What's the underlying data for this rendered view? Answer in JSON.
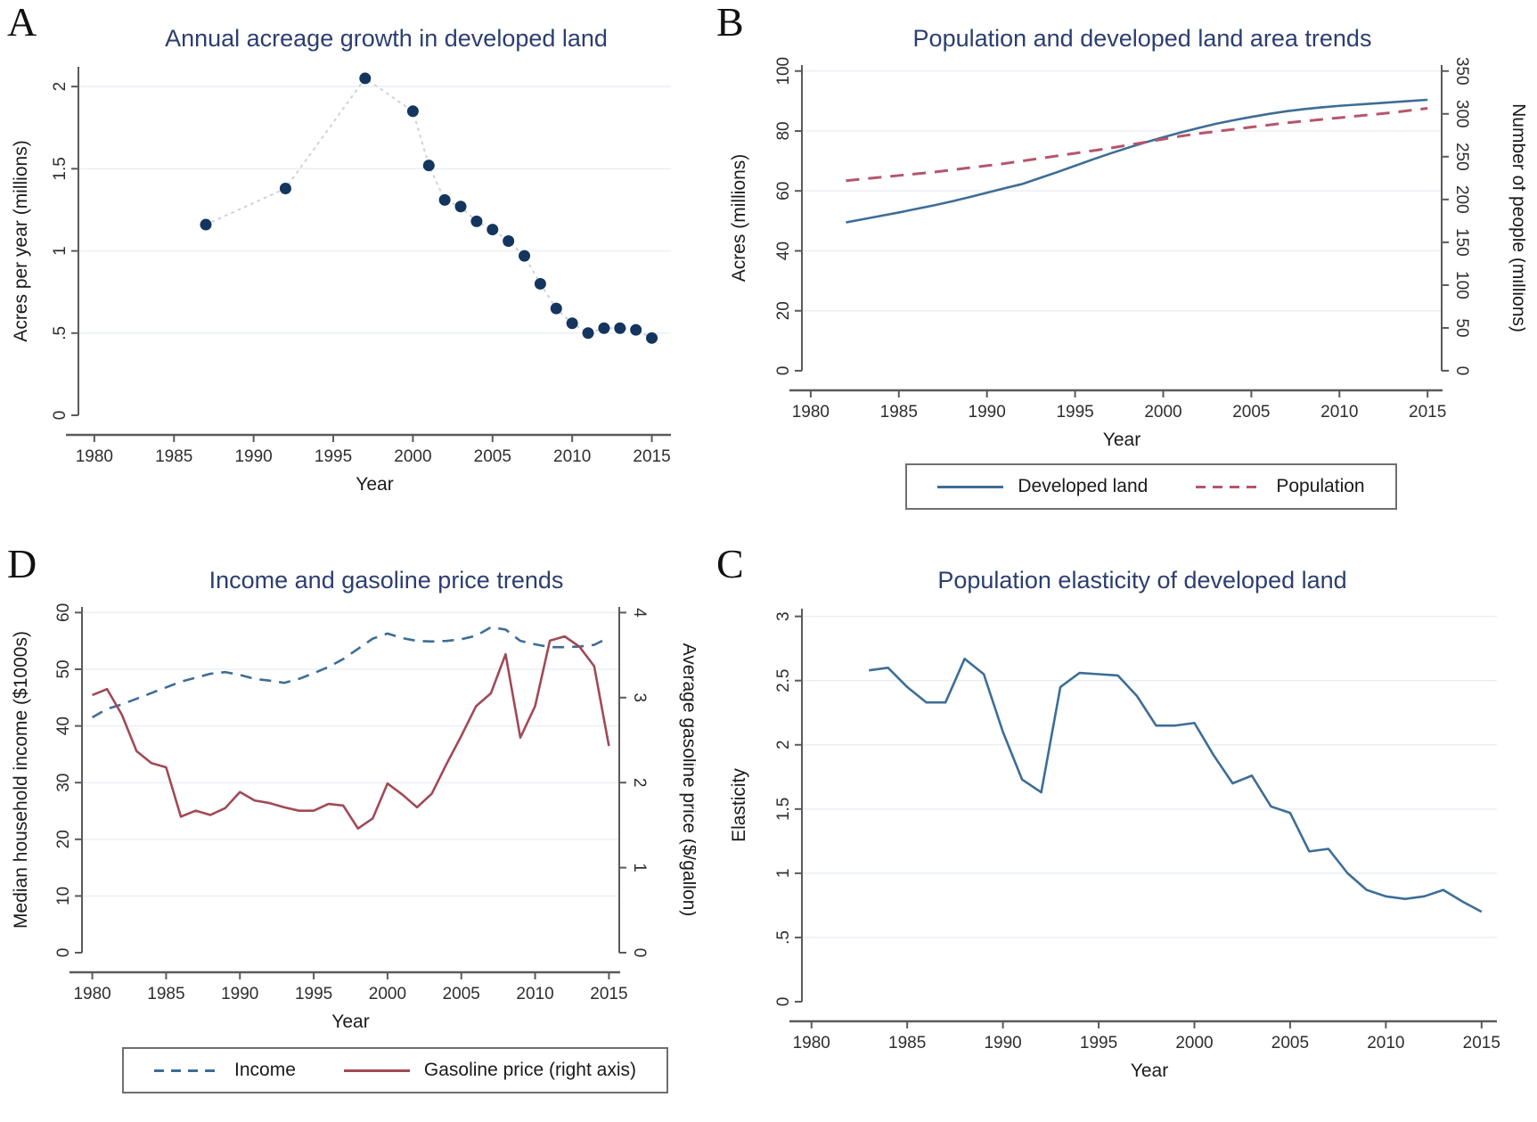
{
  "colors": {
    "title": "#2c3e70",
    "blue_line": "#3d6d96",
    "navy_dot": "#14355f",
    "maroon_line": "#a04a55",
    "pink_dash": "#b5566c",
    "connector_dotted": "#ccd2da",
    "grid": "#e9eef4",
    "axis": "#5a5a5a",
    "tick_text": "#2e2e2e",
    "axis_title_text": "#1a1a1a"
  },
  "chart_data": [
    {
      "panel_letter": "A",
      "type": "scatter",
      "title": "Annual acreage growth in developed land",
      "xlabel": "Year",
      "ylabel": "Acres per year (millions)",
      "xlim": [
        1979,
        2016.2
      ],
      "ylim": [
        0,
        2.12
      ],
      "xticks": [
        1980,
        1985,
        1990,
        1995,
        2000,
        2005,
        2010,
        2015
      ],
      "xtick_labels": [
        "1980",
        "1985",
        "1990",
        "1995",
        "2000",
        "2005",
        "2010",
        "2015"
      ],
      "yticks": [
        0,
        0.5,
        1,
        1.5,
        2
      ],
      "ytick_labels": [
        "0",
        ".5",
        "1",
        "1.5",
        "2"
      ],
      "grid": true,
      "series": [
        {
          "name": "Acres per year",
          "axis": "left",
          "x": [
            1987,
            1992,
            1997,
            2000,
            2001,
            2002,
            2003,
            2004,
            2005,
            2006,
            2007,
            2008,
            2009,
            2010,
            2011,
            2012,
            2013,
            2014,
            2015
          ],
          "y": [
            1.16,
            1.38,
            2.05,
            1.85,
            1.52,
            1.31,
            1.27,
            1.18,
            1.13,
            1.06,
            0.97,
            0.8,
            0.65,
            0.56,
            0.5,
            0.53,
            0.53,
            0.52,
            0.47
          ]
        }
      ]
    },
    {
      "panel_letter": "B",
      "type": "line",
      "title": "Population and developed land area trends",
      "xlabel": "Year",
      "ylabel": "Acres (millions)",
      "ylabel_right": "Number of people (millions)",
      "xlim": [
        1979.5,
        2015.8
      ],
      "ylim": [
        0,
        102
      ],
      "ylim_right": [
        0,
        357
      ],
      "xticks": [
        1980,
        1985,
        1990,
        1995,
        2000,
        2005,
        2010,
        2015
      ],
      "xtick_labels": [
        "1980",
        "1985",
        "1990",
        "1995",
        "2000",
        "2005",
        "2010",
        "2015"
      ],
      "yticks": [
        0,
        20,
        40,
        60,
        80,
        100
      ],
      "ytick_labels": [
        "0",
        "20",
        "40",
        "60",
        "80",
        "100"
      ],
      "yticks_right": [
        0,
        50,
        100,
        150,
        200,
        250,
        300,
        350
      ],
      "ytick_labels_right": [
        "0",
        "50",
        "100",
        "150",
        "200",
        "250",
        "300",
        "350"
      ],
      "grid": true,
      "legend_position": "bottom",
      "legend": [
        {
          "label": "Developed land",
          "style": "solid-blue"
        },
        {
          "label": "Population",
          "style": "dash-maroon"
        }
      ],
      "series": [
        {
          "name": "Developed land",
          "axis": "left",
          "x": [
            1982,
            1983,
            1984,
            1985,
            1986,
            1987,
            1988,
            1989,
            1990,
            1991,
            1992,
            1993,
            1994,
            1995,
            1996,
            1997,
            1998,
            1999,
            2000,
            2001,
            2002,
            2003,
            2004,
            2005,
            2006,
            2007,
            2008,
            2009,
            2010,
            2011,
            2012,
            2013,
            2014,
            2015
          ],
          "y": [
            49.5,
            50.6,
            51.7,
            52.8,
            54.0,
            55.2,
            56.5,
            57.9,
            59.4,
            60.9,
            62.3,
            64.3,
            66.3,
            68.4,
            70.5,
            72.5,
            74.4,
            76.2,
            77.9,
            79.5,
            81.0,
            82.4,
            83.6,
            84.7,
            85.7,
            86.6,
            87.3,
            87.9,
            88.4,
            88.8,
            89.2,
            89.6,
            90.0,
            90.4
          ]
        },
        {
          "name": "Population",
          "axis": "right",
          "x": [
            1982,
            1983,
            1984,
            1985,
            1986,
            1987,
            1988,
            1989,
            1990,
            1991,
            1992,
            1993,
            1994,
            1995,
            1996,
            1997,
            1998,
            1999,
            2000,
            2001,
            2002,
            2003,
            2004,
            2005,
            2006,
            2007,
            2008,
            2009,
            2010,
            2011,
            2012,
            2013,
            2014,
            2015
          ],
          "y": [
            222,
            224,
            226,
            228,
            230,
            232,
            234.5,
            237,
            239.5,
            242,
            245,
            248,
            251,
            254,
            257,
            260,
            263.5,
            267,
            270.5,
            274,
            277,
            279.5,
            282,
            284.5,
            287,
            289.5,
            291.5,
            293.5,
            295.5,
            297.5,
            299.5,
            301.5,
            304,
            306.5
          ]
        }
      ]
    },
    {
      "panel_letter": "D",
      "type": "line",
      "title": "Income and gasoline price trends",
      "xlabel": "Year",
      "ylabel": "Median household income ($1000s)",
      "ylabel_right": "Average gasoline price ($/gallon)",
      "xlim": [
        1979.3,
        2015.7
      ],
      "ylim": [
        0,
        61
      ],
      "ylim_right": [
        0,
        4.067
      ],
      "xticks": [
        1980,
        1985,
        1990,
        1995,
        2000,
        2005,
        2010,
        2015
      ],
      "xtick_labels": [
        "1980",
        "1985",
        "1990",
        "1995",
        "2000",
        "2005",
        "2010",
        "2015"
      ],
      "yticks": [
        0,
        10,
        20,
        30,
        40,
        50,
        60
      ],
      "ytick_labels": [
        "0",
        "10",
        "20",
        "30",
        "40",
        "50",
        "60"
      ],
      "yticks_right": [
        0,
        1,
        2,
        3,
        4
      ],
      "ytick_labels_right": [
        "0",
        "1",
        "2",
        "3",
        "4"
      ],
      "grid": true,
      "legend_position": "bottom",
      "legend": [
        {
          "label": "Income",
          "style": "dash-blue"
        },
        {
          "label": "Gasoline price (right axis)",
          "style": "solid-maroon"
        }
      ],
      "series": [
        {
          "name": "Income",
          "axis": "left",
          "x": [
            1980,
            1981,
            1982,
            1983,
            1984,
            1985,
            1986,
            1987,
            1988,
            1989,
            1990,
            1991,
            1992,
            1993,
            1994,
            1995,
            1996,
            1997,
            1998,
            1999,
            2000,
            2001,
            2002,
            2003,
            2004,
            2005,
            2006,
            2007,
            2008,
            2009,
            2010,
            2011,
            2012,
            2013,
            2014,
            2015
          ],
          "y": [
            41.5,
            43.0,
            43.8,
            44.8,
            45.8,
            46.8,
            47.8,
            48.5,
            49.2,
            49.5,
            49.0,
            48.3,
            48.0,
            47.6,
            48.3,
            49.3,
            50.4,
            51.8,
            53.6,
            55.4,
            56.3,
            55.5,
            55.0,
            54.9,
            55.0,
            55.3,
            55.9,
            57.4,
            57.0,
            55.0,
            54.4,
            53.9,
            53.9,
            54.0,
            54.3,
            55.6
          ]
        },
        {
          "name": "Gasoline price (right axis)",
          "axis": "right",
          "x": [
            1980,
            1981,
            1982,
            1983,
            1984,
            1985,
            1986,
            1987,
            1988,
            1989,
            1990,
            1991,
            1992,
            1993,
            1994,
            1995,
            1996,
            1997,
            1998,
            1999,
            2000,
            2001,
            2002,
            2003,
            2004,
            2005,
            2006,
            2007,
            2008,
            2009,
            2010,
            2011,
            2012,
            2013,
            2014,
            2015
          ],
          "y": [
            3.03,
            3.1,
            2.8,
            2.37,
            2.23,
            2.18,
            1.6,
            1.67,
            1.62,
            1.7,
            1.89,
            1.79,
            1.76,
            1.71,
            1.67,
            1.67,
            1.75,
            1.73,
            1.46,
            1.58,
            1.99,
            1.86,
            1.71,
            1.87,
            2.22,
            2.55,
            2.9,
            3.05,
            3.51,
            2.53,
            2.9,
            3.67,
            3.72,
            3.6,
            3.37,
            2.43
          ]
        }
      ]
    },
    {
      "panel_letter": "C",
      "type": "line",
      "title": "Population elasticity of developed land",
      "xlabel": "Year",
      "ylabel": "Elasticity",
      "xlim": [
        1979.5,
        2015.8
      ],
      "ylim": [
        0,
        3.06
      ],
      "xticks": [
        1980,
        1985,
        1990,
        1995,
        2000,
        2005,
        2010,
        2015
      ],
      "xtick_labels": [
        "1980",
        "1985",
        "1990",
        "1995",
        "2000",
        "2005",
        "2010",
        "2015"
      ],
      "yticks": [
        0,
        0.5,
        1,
        1.5,
        2,
        2.5,
        3
      ],
      "ytick_labels": [
        "0",
        ".5",
        "1",
        "1.5",
        "2",
        "2.5",
        "3"
      ],
      "grid": true,
      "series": [
        {
          "name": "Elasticity",
          "axis": "left",
          "x": [
            1983,
            1984,
            1985,
            1986,
            1987,
            1988,
            1989,
            1990,
            1991,
            1992,
            1993,
            1994,
            1995,
            1996,
            1997,
            1998,
            1999,
            2000,
            2001,
            2002,
            2003,
            2004,
            2005,
            2006,
            2007,
            2008,
            2009,
            2010,
            2011,
            2012,
            2013,
            2014,
            2015
          ],
          "y": [
            2.58,
            2.6,
            2.45,
            2.33,
            2.33,
            2.67,
            2.55,
            2.1,
            1.73,
            1.63,
            2.45,
            2.56,
            2.55,
            2.54,
            2.38,
            2.15,
            2.15,
            2.17,
            1.92,
            1.7,
            1.76,
            1.52,
            1.47,
            1.17,
            1.19,
            1.0,
            0.87,
            0.82,
            0.8,
            0.82,
            0.87,
            0.78,
            0.7
          ]
        }
      ]
    }
  ]
}
